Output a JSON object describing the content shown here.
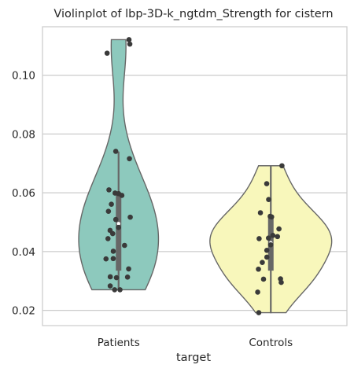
{
  "chart_data": {
    "type": "violin",
    "title": "Violinplot of lbp-3D-k_ngtdm_Strength for cistern",
    "xlabel": "target",
    "ylabel": "",
    "categories": [
      "Patients",
      "Controls"
    ],
    "ylim": [
      0.0148,
      0.1165
    ],
    "yticks": [
      0.02,
      0.04,
      0.06,
      0.08,
      0.1
    ],
    "ytick_labels": [
      "0.02",
      "0.04",
      "0.06",
      "0.08",
      "0.10"
    ],
    "grid": true,
    "series": [
      {
        "category": "Patients",
        "color": "#8dc9bd",
        "box": {
          "q1": 0.0335,
          "median": 0.0495,
          "q3": 0.0595,
          "whisker_low": 0.027,
          "whisker_high": 0.074
        },
        "points": [
          0.1121,
          0.1106,
          0.1075,
          0.0741,
          0.0716,
          0.061,
          0.0599,
          0.0597,
          0.0591,
          0.0561,
          0.0537,
          0.0517,
          0.0509,
          0.0472,
          0.0482,
          0.0461,
          0.0444,
          0.0421,
          0.0401,
          0.0376,
          0.0375,
          0.0341,
          0.0314,
          0.0313,
          0.0311,
          0.0283,
          0.027,
          0.027
        ]
      },
      {
        "category": "Controls",
        "color": "#f8f7bb",
        "box": {
          "q1": 0.0335,
          "median": 0.043,
          "q3": 0.052,
          "whisker_low": 0.019,
          "whisker_high": 0.069
        },
        "points": [
          0.0692,
          0.0631,
          0.0577,
          0.0532,
          0.052,
          0.0518,
          0.0477,
          0.0455,
          0.0451,
          0.0446,
          0.0444,
          0.0423,
          0.0404,
          0.0381,
          0.0363,
          0.034,
          0.0307,
          0.0306,
          0.0295,
          0.0262,
          0.0192
        ]
      }
    ]
  }
}
